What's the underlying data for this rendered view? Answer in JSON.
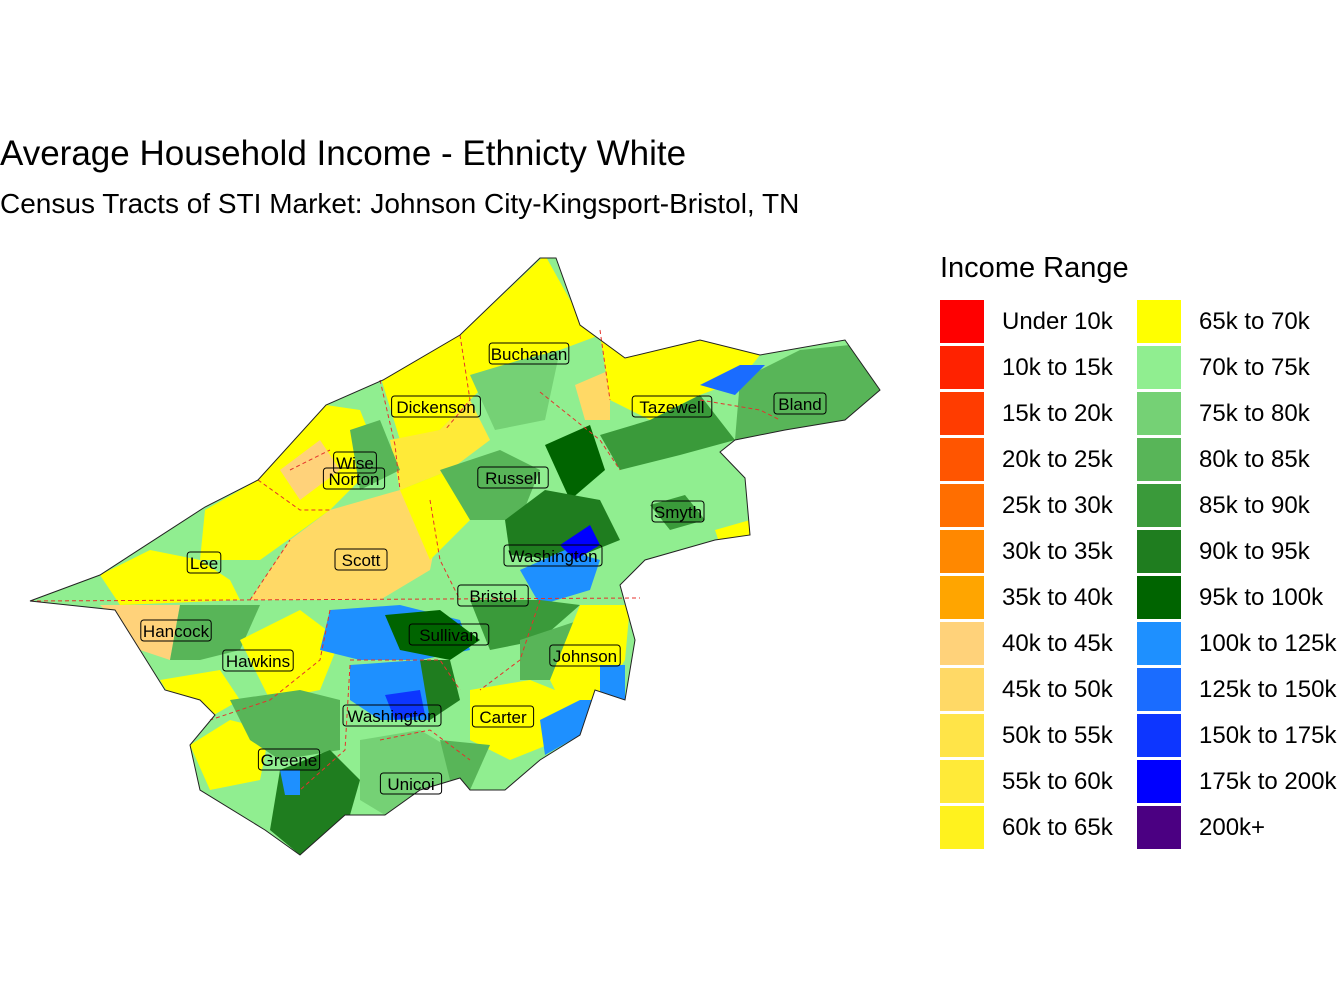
{
  "title": "Average Household Income - Ethnicty White",
  "subtitle": "Census Tracts of STI Market: Johnson City-Kingsport-Bristol, TN",
  "legend": {
    "title": "Income Range",
    "columns": [
      [
        {
          "label": "Under 10k",
          "color": "#FF0000"
        },
        {
          "label": "10k to 15k",
          "color": "#FF2200"
        },
        {
          "label": "15k to 20k",
          "color": "#FF3C00"
        },
        {
          "label": "20k to 25k",
          "color": "#FF5500"
        },
        {
          "label": "25k to 30k",
          "color": "#FF6E00"
        },
        {
          "label": "30k to 35k",
          "color": "#FF8800"
        },
        {
          "label": "35k to 40k",
          "color": "#FFA500"
        },
        {
          "label": "40k to 45k",
          "color": "#FFD27A"
        },
        {
          "label": "45k to 50k",
          "color": "#FFD966"
        },
        {
          "label": "50k to 55k",
          "color": "#FFE448"
        },
        {
          "label": "55k to 60k",
          "color": "#FFEA38"
        },
        {
          "label": "60k to 65k",
          "color": "#FFF21E"
        }
      ],
      [
        {
          "label": "65k to 70k",
          "color": "#FFFF00"
        },
        {
          "label": "70k to 75k",
          "color": "#90EE90"
        },
        {
          "label": "75k to 80k",
          "color": "#75D175"
        },
        {
          "label": "80k to 85k",
          "color": "#58B558"
        },
        {
          "label": "85k to 90k",
          "color": "#3A9A3A"
        },
        {
          "label": "90k to 95k",
          "color": "#1F7D1F"
        },
        {
          "label": "95k to 100k",
          "color": "#006400"
        },
        {
          "label": "100k to 125k",
          "color": "#1E90FF"
        },
        {
          "label": "125k to 150k",
          "color": "#1A6CFF"
        },
        {
          "label": "150k to 175k",
          "color": "#0D36FF"
        },
        {
          "label": "175k to 200k",
          "color": "#0000FF"
        },
        {
          "label": "200k+",
          "color": "#4B0082"
        }
      ]
    ]
  },
  "counties": [
    {
      "name": "Buchanan"
    },
    {
      "name": "Dickenson"
    },
    {
      "name": "Tazewell"
    },
    {
      "name": "Bland"
    },
    {
      "name": "Wise"
    },
    {
      "name": "Norton"
    },
    {
      "name": "Russell"
    },
    {
      "name": "Smyth"
    },
    {
      "name": "Lee"
    },
    {
      "name": "Scott"
    },
    {
      "name": "Washington"
    },
    {
      "name": "Bristol"
    },
    {
      "name": "Hancock"
    },
    {
      "name": "Sullivan"
    },
    {
      "name": "Hawkins"
    },
    {
      "name": "Johnson"
    },
    {
      "name": "Washington"
    },
    {
      "name": "Carter"
    },
    {
      "name": "Greene"
    },
    {
      "name": "Unicoi"
    }
  ]
}
